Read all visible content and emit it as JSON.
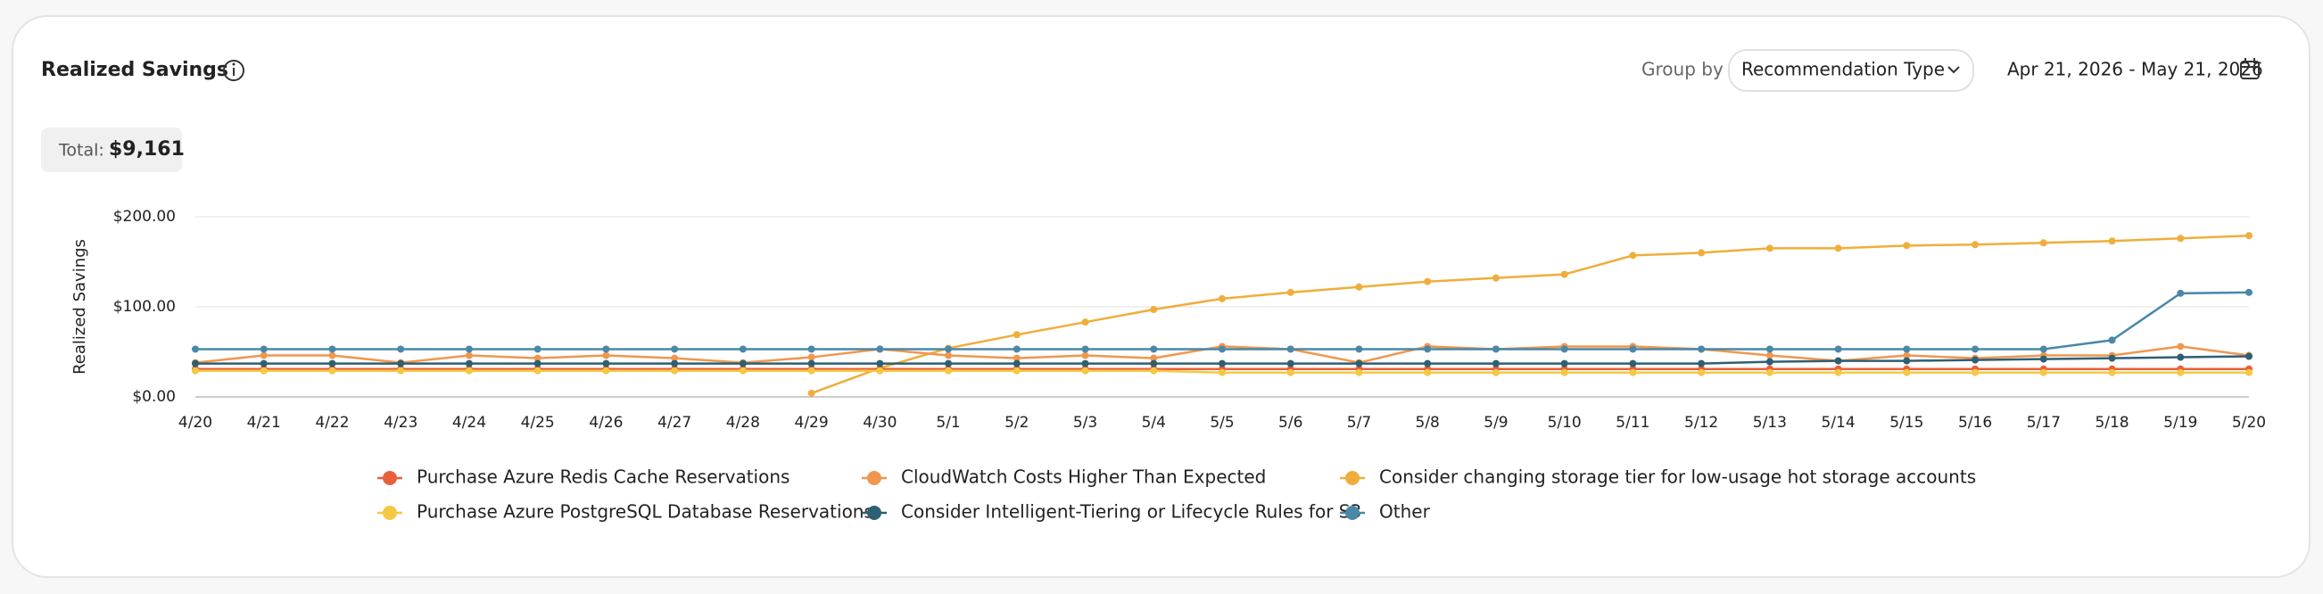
{
  "header": {
    "title": "Realized Savings",
    "group_by_label": "Group by",
    "group_by_value": "Recommendation Type",
    "date_range": "Apr 21, 2026 - May 21, 2026",
    "total_label": "Total:",
    "total_value": "$9,161"
  },
  "chart_data": {
    "type": "line",
    "y_label": "Realized Savings",
    "categories": [
      "4/20",
      "4/21",
      "4/22",
      "4/23",
      "4/24",
      "4/25",
      "4/26",
      "4/27",
      "4/28",
      "4/29",
      "4/30",
      "5/1",
      "5/2",
      "5/3",
      "5/4",
      "5/5",
      "5/6",
      "5/7",
      "5/8",
      "5/9",
      "5/10",
      "5/11",
      "5/12",
      "5/13",
      "5/14",
      "5/15",
      "5/16",
      "5/17",
      "5/18",
      "5/19",
      "5/20"
    ],
    "ylim": [
      0,
      200
    ],
    "yticks": [
      {
        "value": 0,
        "label": "$0.00"
      },
      {
        "value": 100,
        "label": "$100.00"
      },
      {
        "value": 200,
        "label": "$200.00"
      }
    ],
    "grid": true,
    "series": [
      {
        "name": "Purchase Azure Redis Cache Reservations",
        "color": "#e8603c",
        "values": [
          31,
          31,
          31,
          31,
          31,
          31,
          31,
          31,
          31,
          31,
          31,
          31,
          31,
          31,
          31,
          31,
          31,
          31,
          31,
          31,
          31,
          31,
          31,
          31,
          31,
          31,
          31,
          31,
          31,
          31,
          31
        ]
      },
      {
        "name": "CloudWatch Costs Higher Than Expected",
        "color": "#f0974f",
        "values": [
          38,
          46,
          46,
          38,
          46,
          43,
          46,
          43,
          38,
          44,
          53,
          46,
          43,
          46,
          43,
          56,
          53,
          38,
          56,
          53,
          56,
          56,
          53,
          46,
          40,
          46,
          43,
          46,
          46,
          56,
          46
        ]
      },
      {
        "name": "Consider changing storage tier for low-usage hot storage accounts",
        "color": "#efae3b",
        "values": [
          null,
          null,
          null,
          null,
          null,
          null,
          null,
          null,
          null,
          4,
          32,
          54,
          69,
          83,
          97,
          109,
          116,
          122,
          128,
          132,
          136,
          157,
          160,
          165,
          165,
          168,
          169,
          171,
          173,
          176,
          179
        ]
      },
      {
        "name": "Purchase Azure PostgreSQL Database Reservations",
        "color": "#f5c842",
        "values": [
          29,
          29,
          29,
          29,
          29,
          29,
          29,
          29,
          29,
          29,
          29,
          29,
          29,
          29,
          29,
          27,
          27,
          27,
          27,
          27,
          27,
          27,
          27,
          27,
          27,
          27,
          27,
          27,
          27,
          27,
          27
        ]
      },
      {
        "name": "Consider Intelligent-Tiering or Lifecycle Rules for S3",
        "color": "#2e5f73",
        "values": [
          37,
          37,
          37,
          37,
          37,
          37,
          37,
          37,
          37,
          37,
          37,
          37,
          37,
          37,
          37,
          37,
          37,
          37,
          37,
          37,
          37,
          37,
          37,
          39,
          40,
          40,
          41,
          42,
          43,
          44,
          45
        ]
      },
      {
        "name": "Other",
        "color": "#4a87a8",
        "values": [
          53,
          53,
          53,
          53,
          53,
          53,
          53,
          53,
          53,
          53,
          53,
          53,
          53,
          53,
          53,
          53,
          53,
          53,
          53,
          53,
          53,
          53,
          53,
          53,
          53,
          53,
          53,
          53,
          63,
          115,
          116
        ]
      }
    ]
  }
}
